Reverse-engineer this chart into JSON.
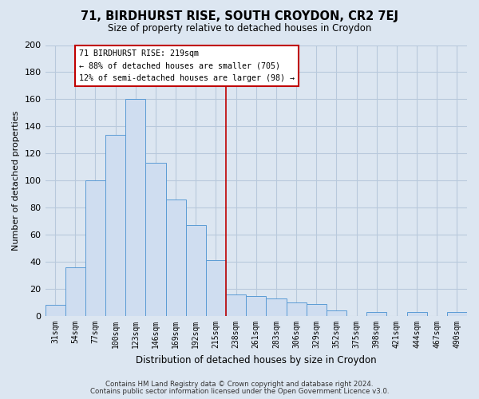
{
  "title": "71, BIRDHURST RISE, SOUTH CROYDON, CR2 7EJ",
  "subtitle": "Size of property relative to detached houses in Croydon",
  "xlabel": "Distribution of detached houses by size in Croydon",
  "ylabel": "Number of detached properties",
  "bar_labels": [
    "31sqm",
    "54sqm",
    "77sqm",
    "100sqm",
    "123sqm",
    "146sqm",
    "169sqm",
    "192sqm",
    "215sqm",
    "238sqm",
    "261sqm",
    "283sqm",
    "306sqm",
    "329sqm",
    "352sqm",
    "375sqm",
    "398sqm",
    "421sqm",
    "444sqm",
    "467sqm",
    "490sqm"
  ],
  "bar_values": [
    8,
    36,
    100,
    134,
    160,
    113,
    86,
    67,
    41,
    16,
    15,
    13,
    10,
    9,
    4,
    0,
    3,
    0,
    3,
    0,
    3
  ],
  "bar_color": "#cfddf0",
  "bar_edge_color": "#5b9bd5",
  "ylim": [
    0,
    200
  ],
  "yticks": [
    0,
    20,
    40,
    60,
    80,
    100,
    120,
    140,
    160,
    180,
    200
  ],
  "vline_x": 8.5,
  "annotation_title": "71 BIRDHURST RISE: 219sqm",
  "annotation_line1": "← 88% of detached houses are smaller (705)",
  "annotation_line2": "12% of semi-detached houses are larger (98) →",
  "annotation_box_color": "#ffffff",
  "annotation_box_edge": "#c00000",
  "vline_color": "#c00000",
  "footnote1": "Contains HM Land Registry data © Crown copyright and database right 2024.",
  "footnote2": "Contains public sector information licensed under the Open Government Licence v3.0.",
  "bg_color": "#dce6f1",
  "plot_bg_color": "#dce6f1",
  "grid_color": "#b8c9dc"
}
